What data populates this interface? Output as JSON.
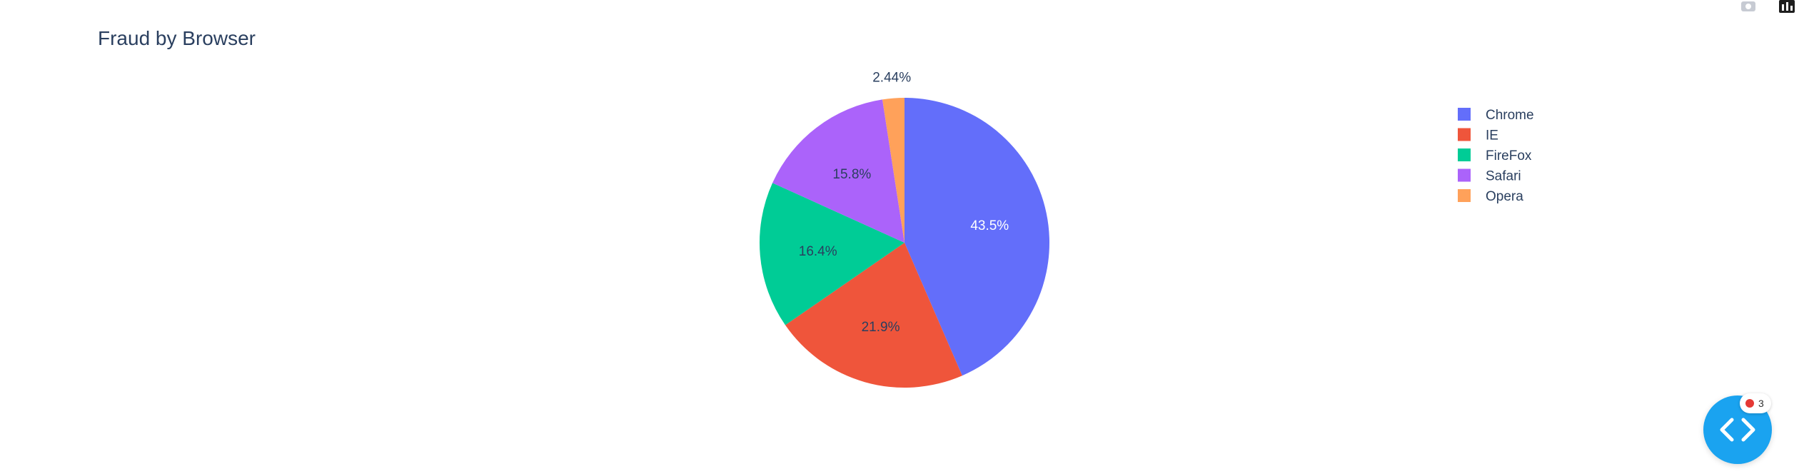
{
  "chart_data": {
    "type": "pie",
    "title": "Fraud by Browser",
    "labels": [
      "Chrome",
      "IE",
      "FireFox",
      "Safari",
      "Opera"
    ],
    "values": [
      43.5,
      21.9,
      16.4,
      15.8,
      2.44
    ],
    "text_labels": [
      "43.5%",
      "21.9%",
      "16.4%",
      "15.8%",
      "2.44%"
    ],
    "colors": [
      "#636efa",
      "#EF553B",
      "#00cc96",
      "#ab63fa",
      "#FFA15A"
    ],
    "label_colors": [
      "#ffffff",
      "#2a3f5f",
      "#2a3f5f",
      "#2a3f5f",
      "#2a3f5f"
    ],
    "direction": "clockwise",
    "rotation_start": "top",
    "legend_position": "top-right"
  },
  "modebar": {
    "icons": [
      "camera-icon",
      "bar-chart-icon"
    ]
  },
  "dev_tools": {
    "icon": "code-brackets-icon",
    "error_count": "3"
  }
}
